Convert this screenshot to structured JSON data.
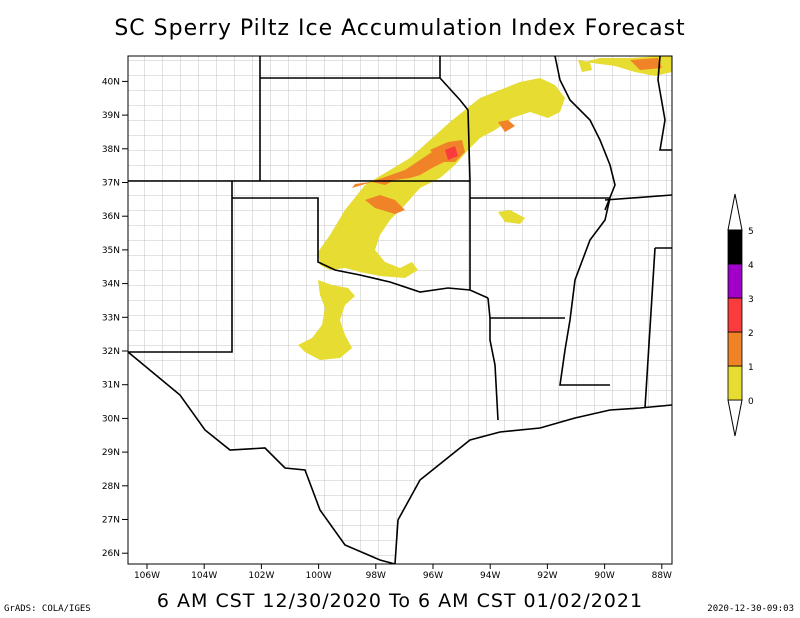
{
  "title": "SC Sperry Piltz Ice Accumulation Index Forecast",
  "subtitle": "6 AM CST 12/30/2020 To 6 AM CST 01/02/2021",
  "credit": "GrADS: COLA/IGES",
  "timestamp": "2020-12-30-09:03",
  "lat_ticks": [
    {
      "label": "40N",
      "lat": 40
    },
    {
      "label": "39N",
      "lat": 39
    },
    {
      "label": "38N",
      "lat": 38
    },
    {
      "label": "37N",
      "lat": 37
    },
    {
      "label": "36N",
      "lat": 36
    },
    {
      "label": "35N",
      "lat": 35
    },
    {
      "label": "34N",
      "lat": 34
    },
    {
      "label": "33N",
      "lat": 33
    },
    {
      "label": "32N",
      "lat": 32
    },
    {
      "label": "31N",
      "lat": 31
    },
    {
      "label": "30N",
      "lat": 30
    },
    {
      "label": "29N",
      "lat": 29
    },
    {
      "label": "28N",
      "lat": 28
    },
    {
      "label": "27N",
      "lat": 27
    },
    {
      "label": "26N",
      "lat": 26
    }
  ],
  "lon_ticks": [
    {
      "label": "106W",
      "lon": -106
    },
    {
      "label": "104W",
      "lon": -104
    },
    {
      "label": "102W",
      "lon": -102
    },
    {
      "label": "100W",
      "lon": -100
    },
    {
      "label": "98W",
      "lon": -98
    },
    {
      "label": "96W",
      "lon": -96
    },
    {
      "label": "94W",
      "lon": -94
    },
    {
      "label": "92W",
      "lon": -92
    },
    {
      "label": "90W",
      "lon": -90
    },
    {
      "label": "88W",
      "lon": -88
    }
  ],
  "legend": [
    {
      "label": "0",
      "color": "#e6dc32"
    },
    {
      "label": "1",
      "color": "#f08228"
    },
    {
      "label": "2",
      "color": "#fa3c3c"
    },
    {
      "label": "3",
      "color": "#a000c8"
    },
    {
      "label": "4",
      "color": "#000000"
    },
    {
      "label": "5",
      "color": ""
    }
  ],
  "colors": {
    "level0": "#e6dc32",
    "level1": "#f08228",
    "level2": "#fa3c3c",
    "county_lines": "#b4b4b4",
    "state_lines": "#000000"
  }
}
